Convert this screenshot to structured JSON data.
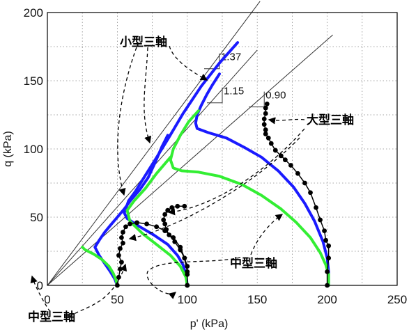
{
  "chart_data": {
    "type": "line",
    "title": "",
    "xlabel": "p' (kPa)",
    "ylabel": "q (kPa)",
    "xlim": [
      0,
      250
    ],
    "ylim": [
      0,
      200
    ],
    "xticks": [
      0,
      50,
      100,
      150,
      200,
      250
    ],
    "yticks": [
      0,
      50,
      100,
      150,
      200
    ],
    "grid": "dotted",
    "reference_lines": [
      {
        "slope_label": "1.37",
        "slope": 1.37
      },
      {
        "slope_label": "1.15",
        "slope": 1.15
      },
      {
        "slope_label": "0.90",
        "slope": 0.9
      }
    ],
    "series": [
      {
        "group": "small",
        "color": "#1a1aff",
        "points": [
          [
            50,
            0
          ],
          [
            48,
            5
          ],
          [
            45,
            10
          ],
          [
            41,
            16
          ],
          [
            37,
            22
          ],
          [
            34,
            28
          ],
          [
            37,
            33
          ],
          [
            41,
            39
          ],
          [
            45,
            44
          ],
          [
            50,
            50
          ],
          [
            55,
            56
          ],
          [
            60,
            63
          ],
          [
            66,
            70
          ],
          [
            72,
            79
          ],
          [
            77,
            90
          ],
          [
            82,
            102
          ],
          [
            86,
            110
          ]
        ]
      },
      {
        "group": "small",
        "color": "#1a1aff",
        "points": [
          [
            100,
            0
          ],
          [
            99,
            8
          ],
          [
            97,
            15
          ],
          [
            93,
            22
          ],
          [
            86,
            30
          ],
          [
            76,
            37
          ],
          [
            66,
            43
          ],
          [
            57,
            49
          ],
          [
            55,
            53
          ],
          [
            58,
            62
          ],
          [
            63,
            69
          ],
          [
            69,
            79
          ],
          [
            77,
            92
          ],
          [
            86,
            107
          ],
          [
            97,
            126
          ],
          [
            110,
            146
          ],
          [
            123,
            163
          ],
          [
            136,
            178
          ]
        ]
      },
      {
        "group": "small",
        "color": "#1a1aff",
        "points": [
          [
            201,
            0
          ],
          [
            201,
            10
          ],
          [
            200,
            20
          ],
          [
            197,
            32
          ],
          [
            191,
            47
          ],
          [
            184,
            60
          ],
          [
            176,
            72
          ],
          [
            165,
            84
          ],
          [
            153,
            94
          ],
          [
            141,
            101
          ],
          [
            128,
            108
          ],
          [
            115,
            112
          ],
          [
            107,
            115
          ],
          [
            106,
            119
          ],
          [
            107,
            125
          ],
          [
            110,
            132
          ],
          [
            114,
            140
          ],
          [
            118,
            147
          ],
          [
            123,
            155
          ]
        ]
      },
      {
        "group": "medium",
        "color": "#33ee33",
        "points": [
          [
            50,
            0
          ],
          [
            49,
            4
          ],
          [
            47,
            9
          ],
          [
            44,
            14
          ],
          [
            39,
            19
          ],
          [
            33,
            23
          ],
          [
            27,
            26
          ],
          [
            25,
            28
          ]
        ]
      },
      {
        "group": "medium",
        "color": "#33ee33",
        "points": [
          [
            100,
            0
          ],
          [
            99,
            6
          ],
          [
            95,
            14
          ],
          [
            88,
            22
          ],
          [
            78,
            30
          ],
          [
            68,
            38
          ],
          [
            59,
            47
          ],
          [
            57,
            55
          ],
          [
            62,
            62
          ],
          [
            70,
            71
          ],
          [
            78,
            82
          ],
          [
            88,
            94
          ]
        ]
      },
      {
        "group": "medium",
        "color": "#33ee33",
        "points": [
          [
            201,
            0
          ],
          [
            201,
            8
          ],
          [
            199,
            15
          ],
          [
            195,
            24
          ],
          [
            188,
            35
          ],
          [
            178,
            46
          ],
          [
            167,
            56
          ],
          [
            153,
            66
          ],
          [
            139,
            74
          ],
          [
            123,
            80
          ],
          [
            108,
            83
          ],
          [
            96,
            84
          ],
          [
            90,
            86
          ],
          [
            88,
            92
          ],
          [
            90,
            100
          ],
          [
            95,
            110
          ],
          [
            101,
            120
          ],
          [
            108,
            128
          ]
        ]
      },
      {
        "group": "large",
        "color": "#000000",
        "marker": true,
        "points": [
          [
            50,
            0
          ],
          [
            51,
            6
          ],
          [
            52,
            12
          ],
          [
            53,
            17
          ],
          [
            51,
            22
          ],
          [
            52,
            27
          ],
          [
            54,
            31
          ],
          [
            53,
            35
          ],
          [
            54,
            39
          ],
          [
            56,
            43
          ],
          [
            59,
            45
          ],
          [
            64,
            46
          ],
          [
            71,
            45
          ],
          [
            78,
            43
          ],
          [
            84,
            40
          ],
          [
            90,
            35
          ],
          [
            95,
            28
          ],
          [
            98,
            20
          ],
          [
            100,
            10
          ],
          [
            100,
            0
          ]
        ]
      },
      {
        "group": "large",
        "color": "#000000",
        "marker": true,
        "points": [
          [
            100,
            0
          ],
          [
            100,
            8
          ],
          [
            100,
            14
          ],
          [
            98,
            20
          ],
          [
            95,
            26
          ],
          [
            91,
            32
          ],
          [
            87,
            37
          ],
          [
            85,
            41
          ],
          [
            84,
            45
          ],
          [
            83,
            48
          ],
          [
            84,
            52
          ],
          [
            86,
            55
          ],
          [
            89,
            57
          ],
          [
            93,
            58
          ],
          [
            98,
            58
          ]
        ]
      },
      {
        "group": "large",
        "color": "#000000",
        "marker": true,
        "points": [
          [
            200,
            0
          ],
          [
            200,
            10
          ],
          [
            201,
            20
          ],
          [
            201,
            29
          ],
          [
            199,
            33
          ],
          [
            198,
            40
          ],
          [
            195,
            48
          ],
          [
            192,
            57
          ],
          [
            188,
            68
          ],
          [
            184,
            75
          ],
          [
            179,
            82
          ],
          [
            174,
            88
          ],
          [
            170,
            92
          ],
          [
            167,
            95
          ],
          [
            163,
            99
          ],
          [
            160,
            104
          ],
          [
            158,
            108
          ],
          [
            156,
            111
          ],
          [
            156,
            114
          ],
          [
            155,
            118
          ],
          [
            155,
            122
          ],
          [
            156,
            126
          ],
          [
            156,
            130
          ],
          [
            157,
            133
          ]
        ]
      }
    ],
    "annotations": [
      {
        "text": "小型三軸",
        "position": "upper-left"
      },
      {
        "text": "大型三軸",
        "position": "right"
      },
      {
        "text": "中型三軸",
        "position": "lower-right"
      },
      {
        "text": "中型三軸",
        "position": "bottom-left"
      }
    ]
  }
}
